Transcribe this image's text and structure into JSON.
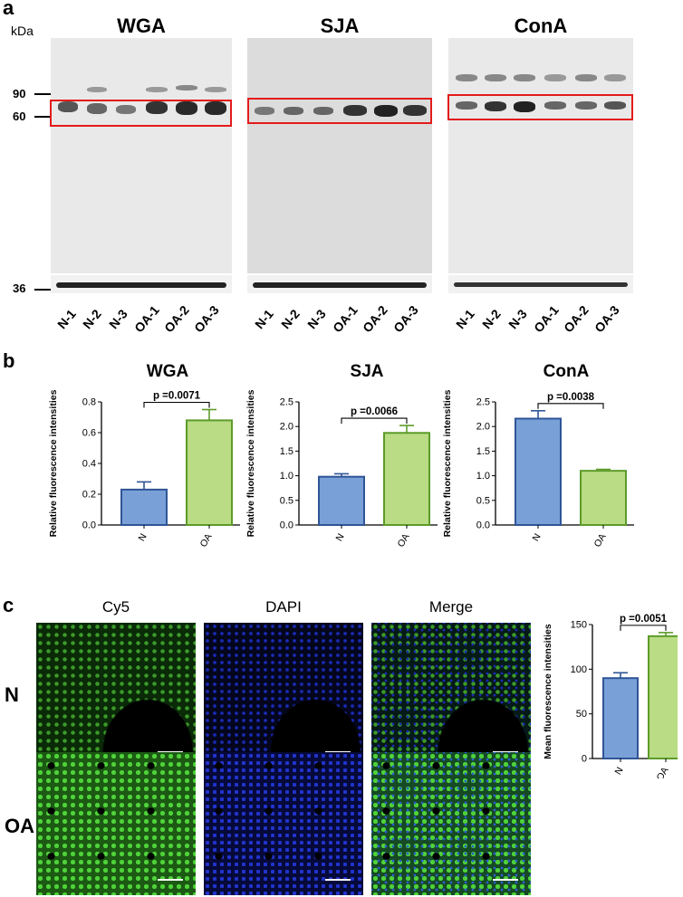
{
  "panel_a": {
    "letter": "a",
    "kda_label": "kDa",
    "mw_markers": [
      "90",
      "60",
      "36"
    ],
    "blots": [
      {
        "title": "WGA",
        "lanes": [
          "N-1",
          "N-2",
          "N-3",
          "OA-1",
          "OA-2",
          "OA-3"
        ]
      },
      {
        "title": "SJA",
        "lanes": [
          "N-1",
          "N-2",
          "N-3",
          "OA-1",
          "OA-2",
          "OA-3"
        ]
      },
      {
        "title": "ConA",
        "lanes": [
          "N-1",
          "N-2",
          "N-3",
          "OA-1",
          "OA-2",
          "OA-3"
        ]
      }
    ],
    "box_color": "#e41b1b"
  },
  "panel_b": {
    "letter": "b"
  },
  "panel_c": {
    "letter": "c",
    "columns": [
      "Cy5",
      "DAPI",
      "Merge"
    ],
    "rows": [
      "N",
      "OA"
    ]
  },
  "colors": {
    "blue_fill": "#7aa0d8",
    "blue_stroke": "#2f5597",
    "green_fill": "#b9dc85",
    "green_stroke": "#5d9b2a"
  },
  "chart_data": [
    {
      "type": "bar",
      "title": "WGA",
      "ylabel": "Relative fluorescence intensities",
      "categories": [
        "N",
        "OA"
      ],
      "values": [
        0.23,
        0.68
      ],
      "errors": [
        0.05,
        0.07
      ],
      "ylim": [
        0,
        0.8
      ],
      "yticks": [
        "0.0",
        "0.2",
        "0.4",
        "0.6",
        "0.8"
      ],
      "yticknums": [
        0,
        0.2,
        0.4,
        0.6,
        0.8
      ],
      "annotation": "p =0.0071"
    },
    {
      "type": "bar",
      "title": "SJA",
      "ylabel": "Relative fluorescence intensities",
      "categories": [
        "N",
        "OA"
      ],
      "values": [
        0.98,
        1.87
      ],
      "errors": [
        0.06,
        0.15
      ],
      "ylim": [
        0,
        2.5
      ],
      "yticks": [
        "0.0",
        "0.5",
        "1.0",
        "1.5",
        "2.0",
        "2.5"
      ],
      "yticknums": [
        0,
        0.5,
        1,
        1.5,
        2,
        2.5
      ],
      "annotation": "p =0.0066"
    },
    {
      "type": "bar",
      "title": "ConA",
      "ylabel": "Relative fluorescence intensities",
      "categories": [
        "N",
        "OA"
      ],
      "values": [
        2.16,
        1.1
      ],
      "errors": [
        0.16,
        0.03
      ],
      "ylim": [
        0,
        2.5
      ],
      "yticks": [
        "0.0",
        "0.5",
        "1.0",
        "1.5",
        "2.0",
        "2.5"
      ],
      "yticknums": [
        0,
        0.5,
        1,
        1.5,
        2,
        2.5
      ],
      "annotation": "p =0.0038"
    },
    {
      "type": "bar",
      "title": "",
      "ylabel": "Mean fluorescence intensities",
      "categories": [
        "N",
        "OA"
      ],
      "values": [
        90,
        137
      ],
      "errors": [
        6,
        4
      ],
      "ylim": [
        0,
        150
      ],
      "yticks": [
        "0",
        "50",
        "100",
        "150"
      ],
      "yticknums": [
        0,
        50,
        100,
        150
      ],
      "annotation": "p =0.0051"
    }
  ]
}
